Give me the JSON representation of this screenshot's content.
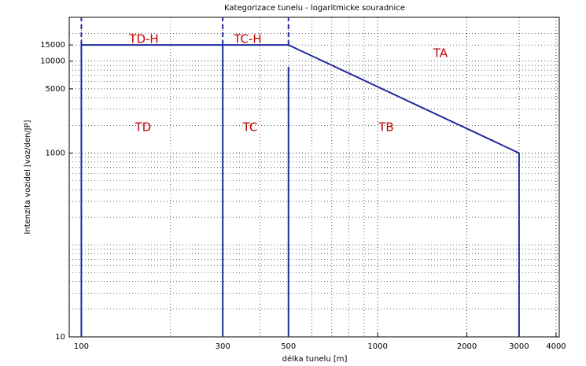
{
  "chart_data": {
    "type": "line",
    "title": "Kategorizace tunelu - logaritmicke souradnice",
    "xlabel": "délka tunelu [m]",
    "ylabel": "Intenzita vozidel [voz/den/JP]",
    "xscale": "log",
    "yscale": "log",
    "xlim": [
      91,
      4100
    ],
    "ylim": [
      10,
      30000
    ],
    "xticks": [
      100,
      300,
      500,
      1000,
      2000,
      3000,
      4000
    ],
    "yticks": [
      10,
      1000,
      5000,
      10000,
      15000
    ],
    "grid": true,
    "minor_grid": true,
    "lines": [
      {
        "color": "#1f2a9c",
        "style": "solid",
        "x": [
          100,
          100,
          500,
          3000,
          3000
        ],
        "y": [
          10,
          15000,
          15000,
          1000,
          10
        ]
      },
      {
        "color": "#1f2a9c",
        "style": "solid",
        "x": [
          300,
          300
        ],
        "y": [
          10,
          15000
        ]
      },
      {
        "color": "#1f2a9c",
        "style": "solid",
        "x": [
          500,
          500
        ],
        "y": [
          10,
          8700
        ]
      },
      {
        "color": "#1f2a9c",
        "style": "dashed",
        "x": [
          100,
          100
        ],
        "y": [
          15000,
          30000
        ]
      },
      {
        "color": "#1f2a9c",
        "style": "dashed",
        "x": [
          300,
          300
        ],
        "y": [
          15000,
          30000
        ]
      },
      {
        "color": "#1f2a9c",
        "style": "dashed",
        "x": [
          500,
          500
        ],
        "y": [
          15000,
          30000
        ]
      }
    ],
    "annotations": [
      "TD-H",
      "TC-H",
      "TA",
      "TD",
      "TC",
      "TB"
    ],
    "annotation_color": "#c00000"
  }
}
